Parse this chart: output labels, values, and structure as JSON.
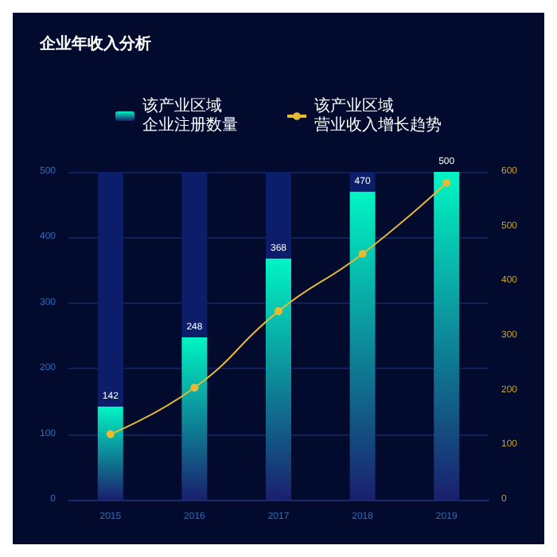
{
  "chart_data": {
    "type": "bar",
    "title": "企业年收入分析",
    "stacked": true,
    "categories": [
      "2015",
      "2016",
      "2017",
      "2018",
      "2019"
    ],
    "series": [
      {
        "name": "该产业区域企业注册数量",
        "color": "#00f5c4",
        "values": [
          142,
          248,
          368,
          470,
          500
        ],
        "value_labels": [
          "142",
          "248",
          "368",
          "470",
          "500"
        ]
      },
      {
        "color": "#0c1e6a",
        "values": [
          358,
          252,
          132,
          30,
          0
        ]
      },
      {
        "name": "该产业区域营业收入增长趋势",
        "type": "line",
        "axis": "y2",
        "color": "#e8b931",
        "values": [
          120,
          205,
          345,
          450,
          580
        ]
      }
    ],
    "ylim": [
      0,
      500
    ],
    "yticks": [
      0,
      100,
      200,
      300,
      400,
      500
    ],
    "y2lim": [
      0,
      600
    ],
    "y2ticks": [
      0,
      100,
      200,
      300,
      400,
      500,
      600
    ],
    "grid": "y",
    "legend": "top",
    "marker": "circle"
  }
}
